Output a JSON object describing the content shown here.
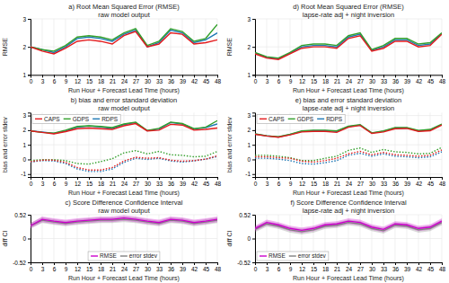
{
  "chart_data": [
    {
      "type": "line",
      "title": "a) Root Mean Squared Error (RMSE)\nraw model output",
      "xlabel": "Run Hour + Forecast Lead Time (hours)",
      "ylabel": "RMSE",
      "x": [
        0,
        3,
        6,
        9,
        12,
        15,
        18,
        21,
        24,
        27,
        30,
        33,
        36,
        39,
        42,
        45,
        48
      ],
      "xlim": [
        0,
        48
      ],
      "xticks": [
        0,
        3,
        6,
        9,
        12,
        15,
        18,
        21,
        24,
        27,
        30,
        33,
        36,
        39,
        42,
        45,
        48
      ],
      "ylim": [
        1,
        3
      ],
      "yticks": [
        1,
        2,
        3
      ],
      "grid": true,
      "series": [
        {
          "color": "#e31a1c",
          "values": [
            2.0,
            1.85,
            1.75,
            1.95,
            2.2,
            2.25,
            2.2,
            2.1,
            2.4,
            2.55,
            2.0,
            2.1,
            2.5,
            2.45,
            2.1,
            2.15,
            2.25
          ]
        },
        {
          "color": "#33a02c",
          "values": [
            2.0,
            1.9,
            1.85,
            2.05,
            2.35,
            2.4,
            2.35,
            2.25,
            2.5,
            2.65,
            2.05,
            2.2,
            2.65,
            2.55,
            2.2,
            2.3,
            2.8
          ]
        },
        {
          "color": "#1f78b4",
          "values": [
            2.0,
            1.9,
            1.8,
            2.0,
            2.3,
            2.35,
            2.3,
            2.2,
            2.45,
            2.6,
            2.0,
            2.15,
            2.6,
            2.5,
            2.15,
            2.25,
            2.5
          ]
        }
      ]
    },
    {
      "type": "line",
      "title": "d) Root Mean Squared Error (RMSE)\nlapse-rate adj + night inversion",
      "xlabel": "Run Hour + Forecast Lead Time (hours)",
      "ylabel": "RMSE",
      "x": [
        0,
        3,
        6,
        9,
        12,
        15,
        18,
        21,
        24,
        27,
        30,
        33,
        36,
        39,
        42,
        45,
        48
      ],
      "xlim": [
        0,
        48
      ],
      "xticks": [
        0,
        3,
        6,
        9,
        12,
        15,
        18,
        21,
        24,
        27,
        30,
        33,
        36,
        39,
        42,
        45,
        48
      ],
      "ylim": [
        1,
        3
      ],
      "yticks": [
        1,
        2,
        3
      ],
      "grid": true,
      "series": [
        {
          "color": "#e31a1c",
          "values": [
            1.75,
            1.6,
            1.55,
            1.75,
            1.95,
            2.0,
            2.0,
            1.95,
            2.3,
            2.4,
            1.85,
            1.95,
            2.2,
            2.2,
            2.0,
            2.05,
            2.45
          ]
        },
        {
          "color": "#33a02c",
          "values": [
            1.8,
            1.65,
            1.6,
            1.8,
            2.05,
            2.1,
            2.1,
            2.05,
            2.4,
            2.5,
            1.9,
            2.05,
            2.3,
            2.3,
            2.1,
            2.15,
            2.5
          ]
        },
        {
          "color": "#1f78b4",
          "values": [
            1.78,
            1.62,
            1.58,
            1.78,
            2.0,
            2.05,
            2.05,
            2.0,
            2.35,
            2.45,
            1.88,
            2.0,
            2.25,
            2.25,
            2.05,
            2.1,
            2.48
          ]
        }
      ]
    },
    {
      "type": "line",
      "title": "b) bias and error standard deviation\nraw model output",
      "xlabel": "Run Hour + Forecast Lead Time (hours)",
      "ylabel": "bias and error stdev",
      "x": [
        0,
        3,
        6,
        9,
        12,
        15,
        18,
        21,
        24,
        27,
        30,
        33,
        36,
        39,
        42,
        45,
        48
      ],
      "xlim": [
        0,
        48
      ],
      "xticks": [
        0,
        3,
        6,
        9,
        12,
        15,
        18,
        21,
        24,
        27,
        30,
        33,
        36,
        39,
        42,
        45,
        48
      ],
      "ylim": [
        -1.2,
        3.2
      ],
      "yticks": [
        -1,
        0,
        1,
        2,
        3
      ],
      "grid": true,
      "legend": "upper left",
      "series": [
        {
          "name": "CAPS",
          "color": "#e31a1c",
          "values": [
            1.95,
            1.85,
            1.75,
            1.9,
            2.1,
            2.15,
            2.1,
            2.05,
            2.3,
            2.45,
            1.95,
            2.0,
            2.4,
            2.35,
            2.0,
            2.05,
            2.15
          ]
        },
        {
          "name": "GDPS",
          "color": "#33a02c",
          "values": [
            1.95,
            1.85,
            1.8,
            2.0,
            2.25,
            2.3,
            2.25,
            2.18,
            2.42,
            2.55,
            1.98,
            2.12,
            2.55,
            2.45,
            2.1,
            2.2,
            2.65
          ]
        },
        {
          "name": "RDPS",
          "color": "#1f78b4",
          "values": [
            1.95,
            1.88,
            1.78,
            1.95,
            2.2,
            2.28,
            2.22,
            2.12,
            2.38,
            2.52,
            1.96,
            2.08,
            2.52,
            2.42,
            2.08,
            2.18,
            2.42
          ]
        },
        {
          "color": "#e31a1c",
          "line_style": "dotted",
          "values": [
            -0.15,
            -0.05,
            -0.05,
            -0.2,
            -0.55,
            -0.72,
            -0.72,
            -0.55,
            -0.1,
            0.15,
            0.08,
            0.12,
            -0.05,
            -0.12,
            -0.08,
            0.02,
            0.25
          ]
        },
        {
          "color": "#33a02c",
          "line_style": "dotted",
          "values": [
            -0.08,
            -0.02,
            -0.02,
            -0.08,
            -0.28,
            -0.32,
            -0.15,
            0.05,
            0.45,
            0.6,
            0.38,
            0.55,
            0.32,
            0.28,
            0.18,
            0.22,
            0.55
          ]
        },
        {
          "color": "#1f78b4",
          "line_style": "dotted",
          "values": [
            -0.18,
            -0.08,
            -0.1,
            -0.28,
            -0.65,
            -0.82,
            -0.82,
            -0.65,
            -0.2,
            0.08,
            0.0,
            0.08,
            -0.1,
            -0.18,
            -0.1,
            0.02,
            0.2
          ]
        }
      ]
    },
    {
      "type": "line",
      "title": "e) bias and error standard deviation\nlapse-rate adj + night inversion",
      "xlabel": "Run Hour + Forecast Lead Time (hours)",
      "ylabel": "bias and error stdev",
      "x": [
        0,
        3,
        6,
        9,
        12,
        15,
        18,
        21,
        24,
        27,
        30,
        33,
        36,
        39,
        42,
        45,
        48
      ],
      "xlim": [
        0,
        48
      ],
      "xticks": [
        0,
        3,
        6,
        9,
        12,
        15,
        18,
        21,
        24,
        27,
        30,
        33,
        36,
        39,
        42,
        45,
        48
      ],
      "ylim": [
        -1.2,
        3.2
      ],
      "yticks": [
        -1,
        0,
        1,
        2,
        3
      ],
      "grid": true,
      "legend": "upper left",
      "series": [
        {
          "name": "CAPS",
          "color": "#e31a1c",
          "values": [
            1.72,
            1.6,
            1.52,
            1.68,
            1.88,
            1.92,
            1.92,
            1.85,
            2.2,
            2.32,
            1.78,
            1.88,
            2.1,
            2.12,
            1.92,
            1.96,
            2.35
          ]
        },
        {
          "name": "GDPS",
          "color": "#33a02c",
          "values": [
            1.75,
            1.62,
            1.55,
            1.72,
            1.95,
            2.0,
            2.0,
            1.95,
            2.28,
            2.38,
            1.82,
            1.95,
            2.18,
            2.18,
            1.98,
            2.05,
            2.42
          ]
        },
        {
          "name": "RDPS",
          "color": "#1f78b4",
          "values": [
            1.73,
            1.61,
            1.53,
            1.7,
            1.92,
            1.97,
            1.97,
            1.92,
            2.25,
            2.35,
            1.8,
            1.92,
            2.15,
            2.15,
            1.95,
            2.01,
            2.39
          ]
        },
        {
          "color": "#e31a1c",
          "line_style": "dotted",
          "values": [
            0.18,
            0.18,
            0.12,
            0.08,
            -0.12,
            -0.18,
            -0.08,
            0.08,
            0.38,
            0.55,
            0.32,
            0.48,
            0.32,
            0.28,
            0.22,
            0.28,
            0.65
          ]
        },
        {
          "color": "#33a02c",
          "line_style": "dotted",
          "values": [
            0.28,
            0.28,
            0.22,
            0.12,
            -0.08,
            -0.08,
            0.08,
            0.22,
            0.62,
            0.78,
            0.48,
            0.68,
            0.52,
            0.48,
            0.38,
            0.42,
            0.82
          ]
        },
        {
          "color": "#1f78b4",
          "line_style": "dotted",
          "values": [
            0.08,
            0.08,
            0.02,
            -0.08,
            -0.28,
            -0.32,
            -0.22,
            -0.08,
            0.28,
            0.42,
            0.22,
            0.38,
            0.22,
            0.18,
            0.12,
            0.18,
            0.52
          ]
        }
      ]
    },
    {
      "type": "line",
      "title": "c) Score Difference Confidence Interval\nraw model output",
      "xlabel": "Run Hour + Forecast Lead Time (hours)",
      "ylabel": "diff CI",
      "x": [
        0,
        3,
        6,
        9,
        12,
        15,
        18,
        21,
        24,
        27,
        30,
        33,
        36,
        39,
        42,
        45,
        48
      ],
      "xlim": [
        0,
        48
      ],
      "xticks": [
        0,
        3,
        6,
        9,
        12,
        15,
        18,
        21,
        24,
        27,
        30,
        33,
        36,
        39,
        42,
        45,
        48
      ],
      "ylim": [
        -0.52,
        0.52
      ],
      "yticks": [
        -0.52,
        0,
        0.52
      ],
      "grid": true,
      "legend": "lower center",
      "series": [
        {
          "name": "RMSE",
          "color": "#cc00cc",
          "values": [
            0.28,
            0.42,
            0.38,
            0.35,
            0.38,
            0.4,
            0.42,
            0.42,
            0.45,
            0.42,
            0.38,
            0.35,
            0.42,
            0.4,
            0.35,
            0.38,
            0.42
          ],
          "lower": [
            0.22,
            0.36,
            0.32,
            0.29,
            0.32,
            0.34,
            0.36,
            0.36,
            0.39,
            0.36,
            0.32,
            0.29,
            0.36,
            0.34,
            0.29,
            0.32,
            0.36
          ],
          "upper": [
            0.34,
            0.48,
            0.44,
            0.41,
            0.44,
            0.46,
            0.48,
            0.48,
            0.51,
            0.48,
            0.44,
            0.41,
            0.48,
            0.46,
            0.41,
            0.44,
            0.48
          ]
        },
        {
          "name": "error stdev",
          "color": "#808080",
          "values": [
            0.28,
            0.4,
            0.36,
            0.33,
            0.36,
            0.38,
            0.4,
            0.4,
            0.42,
            0.4,
            0.36,
            0.33,
            0.4,
            0.38,
            0.33,
            0.36,
            0.4
          ],
          "lower": [
            0.22,
            0.34,
            0.3,
            0.27,
            0.3,
            0.32,
            0.34,
            0.34,
            0.36,
            0.34,
            0.3,
            0.27,
            0.34,
            0.32,
            0.27,
            0.3,
            0.34
          ],
          "upper": [
            0.34,
            0.46,
            0.42,
            0.39,
            0.42,
            0.44,
            0.46,
            0.46,
            0.48,
            0.46,
            0.42,
            0.39,
            0.46,
            0.44,
            0.39,
            0.42,
            0.46
          ]
        }
      ]
    },
    {
      "type": "line",
      "title": "f) Score Difference Confidence Interval\nlapse-rate adj + night inversion",
      "xlabel": "Run Hour + Forecast Lead Time (hours)",
      "ylabel": "diff CI",
      "x": [
        0,
        3,
        6,
        9,
        12,
        15,
        18,
        21,
        24,
        27,
        30,
        33,
        36,
        39,
        42,
        45,
        48
      ],
      "xlim": [
        0,
        48
      ],
      "xticks": [
        0,
        3,
        6,
        9,
        12,
        15,
        18,
        21,
        24,
        27,
        30,
        33,
        36,
        39,
        42,
        45,
        48
      ],
      "ylim": [
        -0.52,
        0.52
      ],
      "yticks": [
        -0.52,
        0,
        0.52
      ],
      "grid": true,
      "legend": "lower left",
      "series": [
        {
          "name": "RMSE",
          "color": "#cc00cc",
          "values": [
            0.22,
            0.35,
            0.3,
            0.22,
            0.18,
            0.22,
            0.3,
            0.32,
            0.38,
            0.35,
            0.25,
            0.2,
            0.32,
            0.3,
            0.22,
            0.25,
            0.38
          ],
          "lower": [
            0.16,
            0.29,
            0.24,
            0.16,
            0.12,
            0.16,
            0.24,
            0.26,
            0.32,
            0.29,
            0.19,
            0.14,
            0.26,
            0.24,
            0.16,
            0.19,
            0.32
          ],
          "upper": [
            0.28,
            0.41,
            0.36,
            0.28,
            0.24,
            0.28,
            0.36,
            0.38,
            0.44,
            0.41,
            0.31,
            0.26,
            0.38,
            0.36,
            0.28,
            0.31,
            0.44
          ]
        },
        {
          "name": "error stdev",
          "color": "#808080",
          "values": [
            0.2,
            0.32,
            0.27,
            0.19,
            0.15,
            0.19,
            0.27,
            0.29,
            0.35,
            0.32,
            0.22,
            0.17,
            0.29,
            0.27,
            0.19,
            0.22,
            0.35
          ],
          "lower": [
            0.14,
            0.26,
            0.21,
            0.13,
            0.09,
            0.13,
            0.21,
            0.23,
            0.29,
            0.26,
            0.16,
            0.11,
            0.23,
            0.21,
            0.13,
            0.16,
            0.29
          ],
          "upper": [
            0.26,
            0.38,
            0.33,
            0.25,
            0.21,
            0.25,
            0.33,
            0.35,
            0.41,
            0.38,
            0.28,
            0.23,
            0.35,
            0.33,
            0.25,
            0.28,
            0.41
          ]
        }
      ]
    }
  ]
}
